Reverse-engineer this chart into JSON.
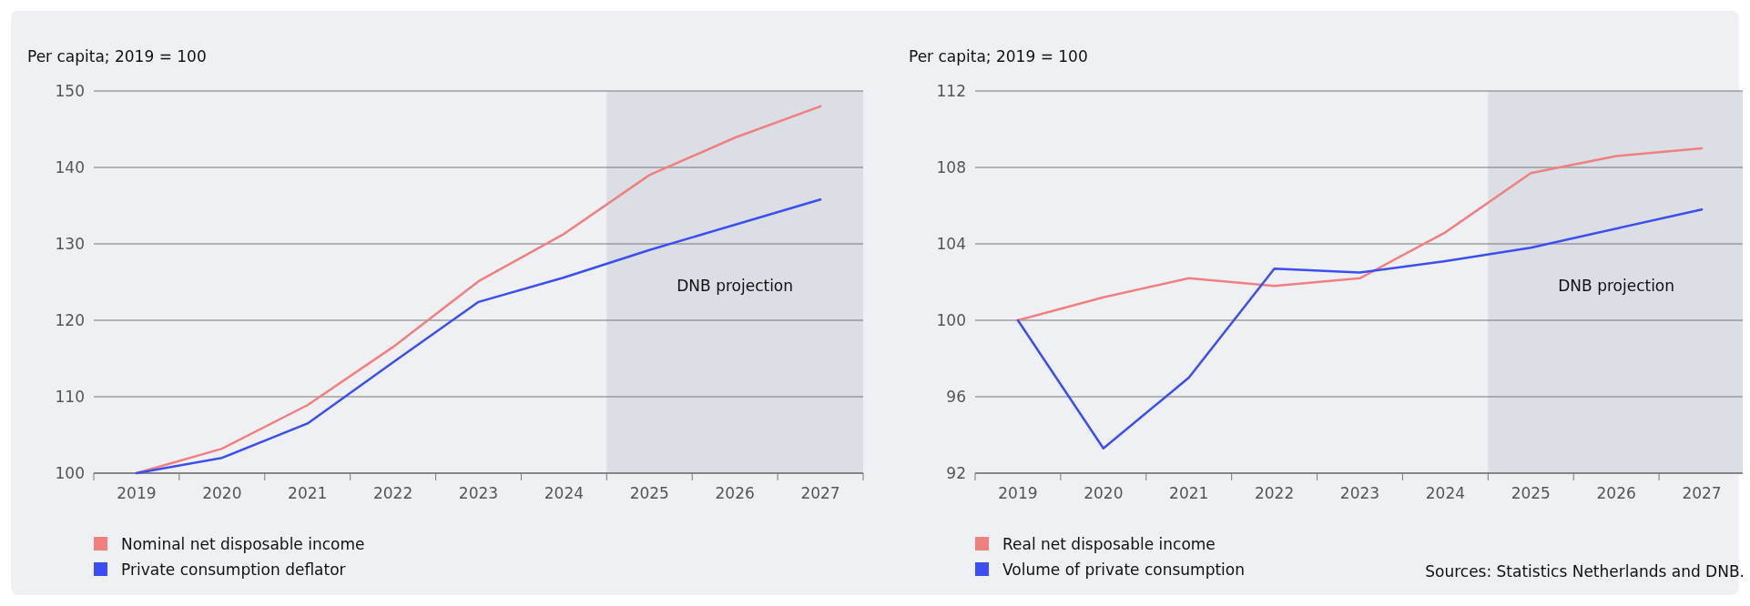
{
  "chart_data": [
    {
      "type": "line",
      "ylabel": "Per capita; 2019 = 100",
      "x": [
        2019,
        2020,
        2021,
        2022,
        2023,
        2024,
        2025,
        2026,
        2027
      ],
      "xlim": [
        2018.5,
        2027.5
      ],
      "xticks": [
        2019,
        2020,
        2021,
        2022,
        2023,
        2024,
        2025,
        2026,
        2027
      ],
      "ylim": [
        100,
        150
      ],
      "yticks": [
        100,
        110,
        120,
        130,
        140,
        150
      ],
      "grid": "y",
      "legend": "bottom",
      "bands": [
        {
          "axis": "x",
          "from": 2024.5,
          "to": 2027.5,
          "label": "DNB projection",
          "color": "#dcdee5"
        }
      ],
      "series": [
        {
          "name": "Nominal net disposable income",
          "color": "#f08080",
          "values": [
            100,
            103.2,
            108.9,
            116.5,
            125.1,
            131.3,
            139.0,
            143.9,
            148.0
          ]
        },
        {
          "name": "Private consumption deflator",
          "color": "#3b4ff0",
          "values": [
            100,
            102.0,
            106.5,
            114.5,
            122.4,
            125.6,
            129.2,
            132.5,
            135.8
          ]
        }
      ]
    },
    {
      "type": "line",
      "ylabel": "Per capita; 2019 = 100",
      "x": [
        2019,
        2020,
        2021,
        2022,
        2023,
        2024,
        2025,
        2026,
        2027
      ],
      "xlim": [
        2018.5,
        2027.5
      ],
      "xticks": [
        2019,
        2020,
        2021,
        2022,
        2023,
        2024,
        2025,
        2026,
        2027
      ],
      "ylim": [
        92,
        112
      ],
      "yticks": [
        92,
        96,
        100,
        104,
        108,
        112
      ],
      "grid": "y",
      "legend": "bottom",
      "bands": [
        {
          "axis": "x",
          "from": 2024.5,
          "to": 2027.5,
          "label": "DNB projection",
          "color": "#dcdee5"
        }
      ],
      "annotations": [
        "Sources: Statistics Netherlands and DNB."
      ],
      "series": [
        {
          "name": "Real net disposable income",
          "color": "#f08080",
          "values": [
            100,
            101.2,
            102.2,
            101.8,
            102.2,
            104.6,
            107.7,
            108.6,
            109.0
          ]
        },
        {
          "name": "Volume of private consumption",
          "color": "#3b4ff0",
          "values": [
            100,
            93.3,
            97.0,
            102.7,
            102.5,
            103.1,
            103.8,
            104.8,
            105.8
          ]
        }
      ]
    }
  ]
}
